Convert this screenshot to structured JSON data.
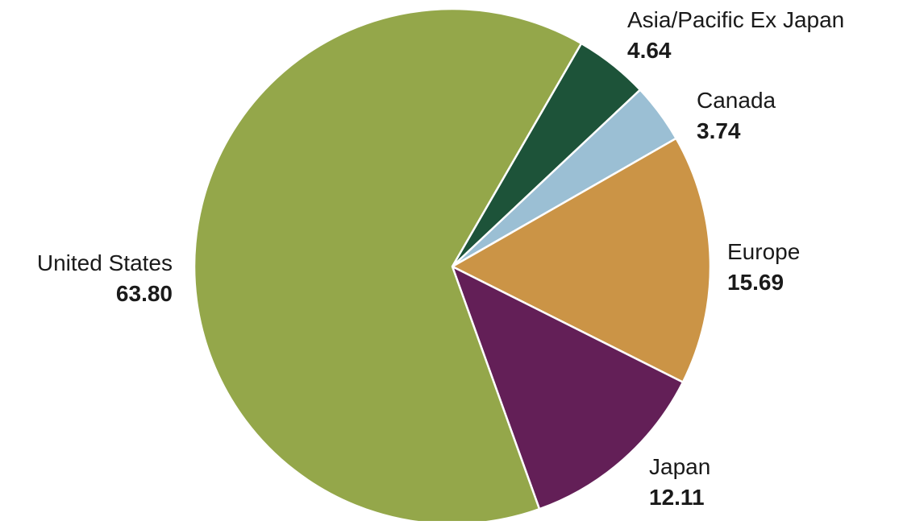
{
  "chart_data": {
    "type": "pie",
    "title": "",
    "categories": [
      "Asia/Pacific Ex Japan",
      "Canada",
      "Europe",
      "Japan",
      "United States"
    ],
    "values": [
      4.64,
      3.74,
      15.69,
      12.11,
      63.8
    ],
    "value_labels": [
      "4.64",
      "3.74",
      "15.69",
      "12.11",
      "63.80"
    ],
    "colors": [
      "#1d5339",
      "#9bbfd4",
      "#cb9446",
      "#631f57",
      "#94a74a"
    ],
    "slice_border_color": "#ffffff",
    "start_angle_deg": 30,
    "direction": "clockwise",
    "legend": "none"
  }
}
